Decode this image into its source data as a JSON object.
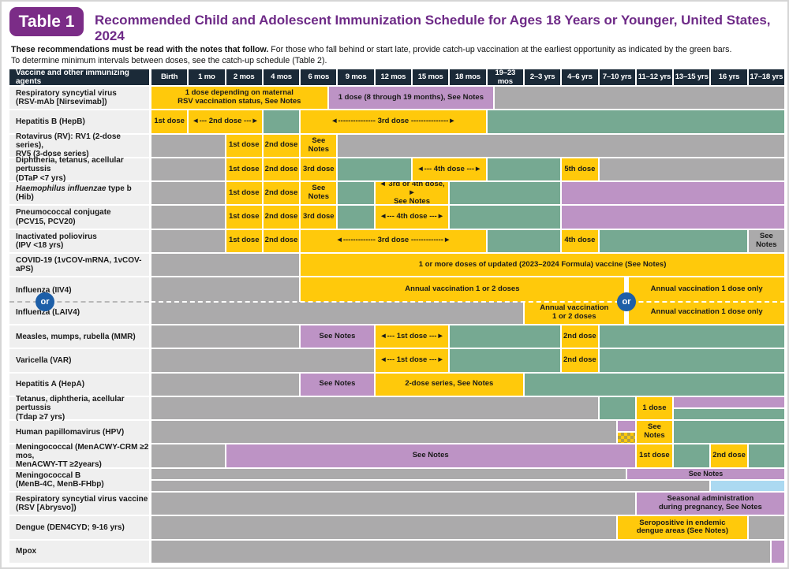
{
  "header": {
    "table_label": "Table 1",
    "title": "Recommended Child and Adolescent Immunization Schedule for Ages 18 Years or Younger, United States, 2024"
  },
  "intro": {
    "bold": "These recommendations must be read with the notes that follow.",
    "rest": " For those who fall behind or start late, provide catch-up vaccination at the earliest opportunity as indicated by the green bars.",
    "line2": "To determine minimum intervals between doses, see the catch-up schedule (Table 2)."
  },
  "colors": {
    "recommended_yellow": "#FFC90B",
    "catchup_green": "#76A992",
    "high_risk_purple": "#BD93C5",
    "no_recommendation_gray": "#ABAAAB",
    "shared_decision_blue": "#ABD9F1",
    "header_navy": "#1B2A38",
    "badge_purple": "#7B2C87",
    "title_purple": "#6E2A87",
    "or_circle_blue": "#1D5FA8"
  },
  "or_label": "or",
  "columns": {
    "label": "Vaccine and other immunizing agents",
    "ages": [
      "Birth",
      "1 mo",
      "2 mos",
      "4 mos",
      "6 mos",
      "9 mos",
      "12 mos",
      "15 mos",
      "18 mos",
      "19–23 mos",
      "2–3 yrs",
      "4–6 yrs",
      "7–10 yrs",
      "11–12 yrs",
      "13–15 yrs",
      "16 yrs",
      "17–18 yrs"
    ]
  },
  "rows": [
    {
      "label": "Respiratory syncytial virus\n(RSV-mAb [Nirsevimab])",
      "cells": [
        {
          "s": 0,
          "e": 4.75,
          "c": "y",
          "t": "1 dose depending on maternal\nRSV vaccination status, See Notes"
        },
        {
          "s": 4.75,
          "e": 9.2,
          "c": "p",
          "t": "1 dose (8 through 19 months), See Notes"
        },
        {
          "s": 9.2,
          "e": 17,
          "c": "n"
        }
      ]
    },
    {
      "label": "Hepatitis B (HepB)",
      "cells": [
        {
          "s": 0,
          "e": 1,
          "c": "y",
          "t": "1st dose"
        },
        {
          "s": 1,
          "e": 3,
          "c": "y",
          "t": "◄--- 2nd dose ---►"
        },
        {
          "s": 3,
          "e": 4,
          "c": "g"
        },
        {
          "s": 4,
          "e": 9,
          "c": "y",
          "t": "◄--------------- 3rd dose ---------------►"
        },
        {
          "s": 9,
          "e": 17,
          "c": "g"
        }
      ]
    },
    {
      "label": "Rotavirus (RV): RV1 (2-dose series),\nRV5 (3-dose series)",
      "cells": [
        {
          "s": 0,
          "e": 2,
          "c": "n"
        },
        {
          "s": 2,
          "e": 3,
          "c": "y",
          "t": "1st dose"
        },
        {
          "s": 3,
          "e": 4,
          "c": "y",
          "t": "2nd dose"
        },
        {
          "s": 4,
          "e": 5,
          "c": "y",
          "t": "See Notes"
        },
        {
          "s": 5,
          "e": 17,
          "c": "n"
        }
      ]
    },
    {
      "label": "Diphtheria, tetanus, acellular pertussis\n(DTaP <7 yrs)",
      "cells": [
        {
          "s": 0,
          "e": 2,
          "c": "n"
        },
        {
          "s": 2,
          "e": 3,
          "c": "y",
          "t": "1st dose"
        },
        {
          "s": 3,
          "e": 4,
          "c": "y",
          "t": "2nd dose"
        },
        {
          "s": 4,
          "e": 5,
          "c": "y",
          "t": "3rd dose"
        },
        {
          "s": 5,
          "e": 7,
          "c": "g"
        },
        {
          "s": 7,
          "e": 9,
          "c": "y",
          "t": "◄--- 4th dose ---►"
        },
        {
          "s": 9,
          "e": 11,
          "c": "g"
        },
        {
          "s": 11,
          "e": 12,
          "c": "y",
          "t": "5th dose"
        },
        {
          "s": 12,
          "e": 17,
          "c": "n"
        }
      ]
    },
    {
      "label_i": "Haemophilus influenzae",
      "label_r": " type b (Hib)",
      "cells": [
        {
          "s": 0,
          "e": 2,
          "c": "n"
        },
        {
          "s": 2,
          "e": 3,
          "c": "y",
          "t": "1st dose"
        },
        {
          "s": 3,
          "e": 4,
          "c": "y",
          "t": "2nd dose"
        },
        {
          "s": 4,
          "e": 5,
          "c": "y",
          "t": "See Notes"
        },
        {
          "s": 5,
          "e": 6,
          "c": "g"
        },
        {
          "s": 6,
          "e": 8,
          "c": "y",
          "t": "◄ 3rd or 4th dose, ►\nSee Notes"
        },
        {
          "s": 8,
          "e": 11,
          "c": "g"
        },
        {
          "s": 11,
          "e": 17,
          "c": "p"
        }
      ]
    },
    {
      "label": "Pneumococcal conjugate\n(PCV15, PCV20)",
      "cells": [
        {
          "s": 0,
          "e": 2,
          "c": "n"
        },
        {
          "s": 2,
          "e": 3,
          "c": "y",
          "t": "1st dose"
        },
        {
          "s": 3,
          "e": 4,
          "c": "y",
          "t": "2nd dose"
        },
        {
          "s": 4,
          "e": 5,
          "c": "y",
          "t": "3rd dose"
        },
        {
          "s": 5,
          "e": 6,
          "c": "g"
        },
        {
          "s": 6,
          "e": 8,
          "c": "y",
          "t": "◄--- 4th dose ---►"
        },
        {
          "s": 8,
          "e": 11,
          "c": "g"
        },
        {
          "s": 11,
          "e": 17,
          "c": "p"
        }
      ]
    },
    {
      "label": "Inactivated poliovirus\n(IPV <18 yrs)",
      "cells": [
        {
          "s": 0,
          "e": 2,
          "c": "n"
        },
        {
          "s": 2,
          "e": 3,
          "c": "y",
          "t": "1st dose"
        },
        {
          "s": 3,
          "e": 4,
          "c": "y",
          "t": "2nd dose"
        },
        {
          "s": 4,
          "e": 9,
          "c": "y",
          "t": "◄------------- 3rd dose -------------►"
        },
        {
          "s": 9,
          "e": 11,
          "c": "g"
        },
        {
          "s": 11,
          "e": 12,
          "c": "y",
          "t": "4th dose"
        },
        {
          "s": 12,
          "e": 16,
          "c": "g"
        },
        {
          "s": 16,
          "e": 17,
          "c": "n",
          "t": "See\nNotes"
        }
      ]
    },
    {
      "label": "COVID-19 (1vCOV-mRNA, 1vCOV-aPS)",
      "cells": [
        {
          "s": 0,
          "e": 4,
          "c": "n"
        },
        {
          "s": 4,
          "e": 17,
          "c": "y",
          "t": "1 or more doses of updated (2023–2024 Formula) vaccine (See Notes)"
        }
      ]
    },
    {
      "label": "Influenza (IIV4)",
      "join": true,
      "cells": [
        {
          "s": 0,
          "e": 4,
          "c": "n"
        },
        {
          "s": 4,
          "e": 12.7,
          "c": "y",
          "t": "Annual vaccination 1 or 2 doses"
        },
        {
          "s": 12.8,
          "e": 17,
          "c": "y",
          "t": "Annual vaccination 1 dose only"
        }
      ]
    },
    {
      "label": "Influenza (LAIV4)",
      "cells": [
        {
          "s": 0,
          "e": 10,
          "c": "n"
        },
        {
          "s": 10,
          "e": 12.7,
          "c": "y",
          "t": "Annual vaccination\n1 or 2 doses"
        },
        {
          "s": 12.8,
          "e": 17,
          "c": "y",
          "t": "Annual vaccination 1 dose only"
        }
      ]
    },
    {
      "label": "Measles, mumps, rubella (MMR)",
      "cells": [
        {
          "s": 0,
          "e": 4,
          "c": "n"
        },
        {
          "s": 4,
          "e": 6,
          "c": "p",
          "t": "See Notes"
        },
        {
          "s": 6,
          "e": 8,
          "c": "y",
          "t": "◄--- 1st dose ---►"
        },
        {
          "s": 8,
          "e": 11,
          "c": "g"
        },
        {
          "s": 11,
          "e": 12,
          "c": "y",
          "t": "2nd dose"
        },
        {
          "s": 12,
          "e": 17,
          "c": "g"
        }
      ]
    },
    {
      "label": "Varicella (VAR)",
      "cells": [
        {
          "s": 0,
          "e": 6,
          "c": "n"
        },
        {
          "s": 6,
          "e": 8,
          "c": "y",
          "t": "◄--- 1st dose ---►"
        },
        {
          "s": 8,
          "e": 11,
          "c": "g"
        },
        {
          "s": 11,
          "e": 12,
          "c": "y",
          "t": "2nd dose"
        },
        {
          "s": 12,
          "e": 17,
          "c": "g"
        }
      ]
    },
    {
      "label": "Hepatitis A (HepA)",
      "cells": [
        {
          "s": 0,
          "e": 4,
          "c": "n"
        },
        {
          "s": 4,
          "e": 6,
          "c": "p",
          "t": "See Notes"
        },
        {
          "s": 6,
          "e": 10,
          "c": "y",
          "t": "2-dose series, See Notes"
        },
        {
          "s": 10,
          "e": 17,
          "c": "g"
        }
      ]
    },
    {
      "label": "Tetanus, diphtheria, acellular pertussis\n(Tdap ≥7 yrs)",
      "cells": [
        {
          "s": 0,
          "e": 12,
          "c": "n"
        },
        {
          "s": 12,
          "e": 13,
          "c": "g"
        },
        {
          "s": 13,
          "e": 14,
          "c": "y",
          "t": "1 dose"
        },
        {
          "s": 14,
          "e": 17,
          "c": "p",
          "half": "t"
        },
        {
          "s": 14,
          "e": 17,
          "c": "g",
          "half": "b"
        }
      ]
    },
    {
      "label": "Human papillomavirus (HPV)",
      "cells": [
        {
          "s": 0,
          "e": 12.5,
          "c": "n"
        },
        {
          "s": 12.5,
          "e": 13,
          "c": "p",
          "half": "t"
        },
        {
          "s": 12.5,
          "e": 13,
          "c": "ch",
          "half": "b"
        },
        {
          "s": 13,
          "e": 14,
          "c": "y",
          "t": "See\nNotes"
        },
        {
          "s": 14,
          "e": 17,
          "c": "g"
        }
      ]
    },
    {
      "label": "Meningococcal (MenACWY-CRM ≥2 mos,\nMenACWY-TT ≥2years)",
      "cells": [
        {
          "s": 0,
          "e": 2,
          "c": "n"
        },
        {
          "s": 2,
          "e": 13,
          "c": "p",
          "t": "See Notes"
        },
        {
          "s": 13,
          "e": 14,
          "c": "y",
          "t": "1st dose"
        },
        {
          "s": 14,
          "e": 15,
          "c": "g"
        },
        {
          "s": 15,
          "e": 16,
          "c": "y",
          "t": "2nd dose"
        },
        {
          "s": 16,
          "e": 17,
          "c": "g"
        }
      ]
    },
    {
      "label": "Meningococcal B\n(MenB-4C, MenB-FHbp)",
      "cells": [
        {
          "s": 0,
          "e": 12.75,
          "c": "n",
          "half": "t"
        },
        {
          "s": 12.75,
          "e": 17,
          "c": "p",
          "half": "t",
          "t": "See Notes"
        },
        {
          "s": 0,
          "e": 15,
          "c": "n",
          "half": "b"
        },
        {
          "s": 15,
          "e": 17,
          "c": "b",
          "half": "b"
        }
      ]
    },
    {
      "label": "Respiratory syncytial virus vaccine\n(RSV [Abrysvo])",
      "cells": [
        {
          "s": 0,
          "e": 13,
          "c": "n"
        },
        {
          "s": 13,
          "e": 17,
          "c": "p",
          "t": "Seasonal administration\nduring pregnancy, See Notes"
        }
      ]
    },
    {
      "label": "Dengue (DEN4CYD; 9-16 yrs)",
      "cells": [
        {
          "s": 0,
          "e": 12.5,
          "c": "n"
        },
        {
          "s": 12.5,
          "e": 16,
          "c": "y",
          "t": "Seropositive in endemic\ndengue areas (See Notes)"
        },
        {
          "s": 16,
          "e": 17,
          "c": "n"
        }
      ]
    },
    {
      "label": "Mpox",
      "cells": [
        {
          "s": 0,
          "e": 16.62,
          "c": "n"
        },
        {
          "s": 16.62,
          "e": 17,
          "c": "p"
        }
      ]
    }
  ]
}
